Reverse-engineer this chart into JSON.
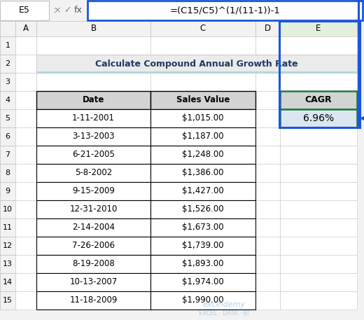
{
  "title": "Calculate Compound Annual Growth Rate",
  "formula_bar_cell": "E5",
  "formula_bar_text": "=(C15/C5)^(1/(11-1))-1",
  "col_headers": [
    "A",
    "B",
    "C",
    "D",
    "E"
  ],
  "row_labels": [
    "1",
    "2",
    "3",
    "4",
    "5",
    "6",
    "7",
    "8",
    "9",
    "10",
    "11",
    "12",
    "13",
    "14",
    "15"
  ],
  "dates": [
    "1-11-2001",
    "3-13-2003",
    "6-21-2005",
    "5-8-2002",
    "9-15-2009",
    "12-31-2010",
    "2-14-2004",
    "7-26-2006",
    "8-19-2008",
    "10-13-2007",
    "11-18-2009"
  ],
  "sales": [
    "$1,015.00",
    "$1,187.00",
    "$1,248.00",
    "$1,386.00",
    "$1,427.00",
    "$1,526.00",
    "$1,673.00",
    "$1,739.00",
    "$1,893.00",
    "$1,974.00",
    "$1,990.00"
  ],
  "cagr_label": "CAGR",
  "cagr_value": "6.96%",
  "header_bg": "#d3d3d3",
  "title_bg": "#ebebeb",
  "cagr_header_bg": "#d3d3d3",
  "cagr_value_bg": "#dce6f1",
  "cell_bg": "#ffffff",
  "row_num_bg": "#f2f2f2",
  "col_header_bg": "#f2f2f2",
  "col_e_header_bg": "#e2efda",
  "grid_color": "#b0b0b0",
  "table_border": "#000000",
  "cagr_border_color": "#1f7a3a",
  "blue_color": "#1a56db",
  "arrow_color": "#1a56db",
  "fig_bg": "#f2f2f2",
  "formula_bg": "#ffffff",
  "title_text_color": "#1f3864",
  "watermark_color": "#b0cfe8"
}
